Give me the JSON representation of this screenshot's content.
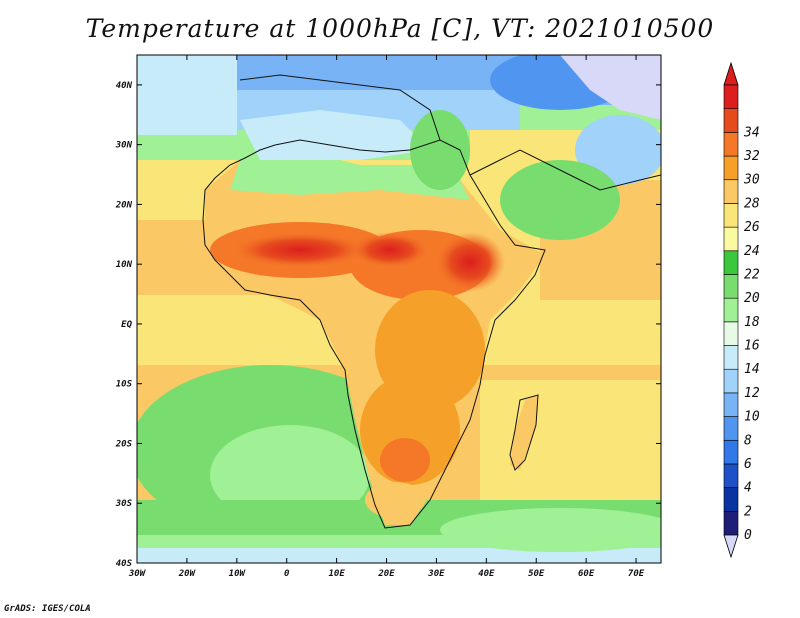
{
  "title": "Temperature at 1000hPa [C], VT: 2021010500",
  "credit": "GrADS: IGES/COLA",
  "map": {
    "variable": "Temperature",
    "level": "1000hPa",
    "units": "C",
    "lon_range": [
      -30,
      75
    ],
    "lat_range": [
      -40,
      45
    ],
    "lon_ticks": [
      {
        "value": -30,
        "label": "30W"
      },
      {
        "value": -20,
        "label": "20W"
      },
      {
        "value": -10,
        "label": "10W"
      },
      {
        "value": 0,
        "label": "0"
      },
      {
        "value": 10,
        "label": "10E"
      },
      {
        "value": 20,
        "label": "20E"
      },
      {
        "value": 30,
        "label": "30E"
      },
      {
        "value": 40,
        "label": "40E"
      },
      {
        "value": 50,
        "label": "50E"
      },
      {
        "value": 60,
        "label": "60E"
      },
      {
        "value": 70,
        "label": "70E"
      }
    ],
    "lat_ticks": [
      {
        "value": 40,
        "label": "40N"
      },
      {
        "value": 30,
        "label": "30N"
      },
      {
        "value": 20,
        "label": "20N"
      },
      {
        "value": 10,
        "label": "10N"
      },
      {
        "value": 0,
        "label": "EQ"
      },
      {
        "value": -10,
        "label": "10S"
      },
      {
        "value": -20,
        "label": "20S"
      },
      {
        "value": -30,
        "label": "30S"
      },
      {
        "value": -40,
        "label": "40S"
      }
    ]
  },
  "colorbar": {
    "levels": [
      "0",
      "2",
      "4",
      "6",
      "8",
      "10",
      "12",
      "14",
      "16",
      "18",
      "20",
      "22",
      "24",
      "26",
      "28",
      "30",
      "32",
      "34"
    ],
    "colors": [
      "#1e1e78",
      "#0a32a0",
      "#1e50c8",
      "#3278e6",
      "#5096f0",
      "#78b4f5",
      "#a0d2fa",
      "#c8ebfa",
      "#e6fae6",
      "#a0f096",
      "#78dc6e",
      "#3cc83c",
      "#fafaa0",
      "#fae678",
      "#fac864",
      "#f5a028",
      "#f57828",
      "#e64b1e",
      "#dc1e1e"
    ],
    "under_color": "#d8d8f8"
  }
}
